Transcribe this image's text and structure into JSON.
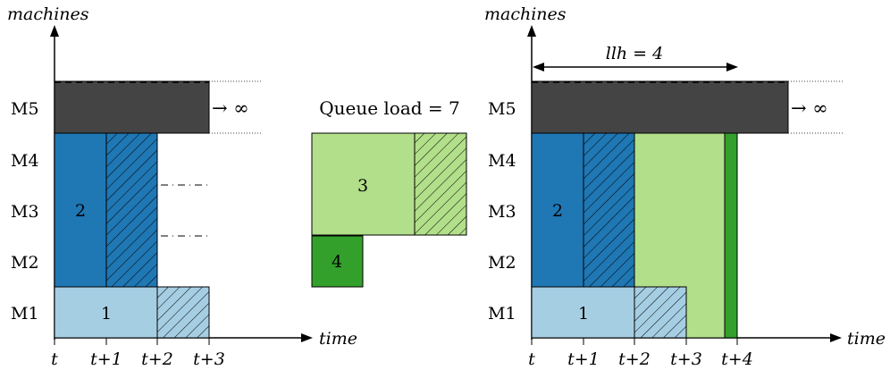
{
  "colors": {
    "m5_block": "#444444",
    "job2": "#1f77b4",
    "job1": "#a6cee3",
    "job3": "#b2df8a",
    "job4": "#33a02c",
    "axis": "#000000"
  },
  "left_panel": {
    "y_axis_label": "machines",
    "x_axis_label": "time",
    "machines": [
      "M1",
      "M2",
      "M3",
      "M4",
      "M5"
    ],
    "time_ticks": [
      "t",
      "t+1",
      "t+2",
      "t+3"
    ],
    "job_labels": {
      "job1": "1",
      "job2": "2"
    },
    "infinity_label": "→ ∞"
  },
  "queue": {
    "title": "Queue load = 7",
    "job_labels": {
      "job3": "3",
      "job4": "4"
    }
  },
  "right_panel": {
    "y_axis_label": "machines",
    "x_axis_label": "time",
    "machines": [
      "M1",
      "M2",
      "M3",
      "M4",
      "M5"
    ],
    "time_ticks": [
      "t",
      "t+1",
      "t+2",
      "t+3",
      "t+4"
    ],
    "llh_label": "llh = 4",
    "job_labels": {
      "job1": "1",
      "job2": "2"
    },
    "infinity_label": "→ ∞"
  }
}
